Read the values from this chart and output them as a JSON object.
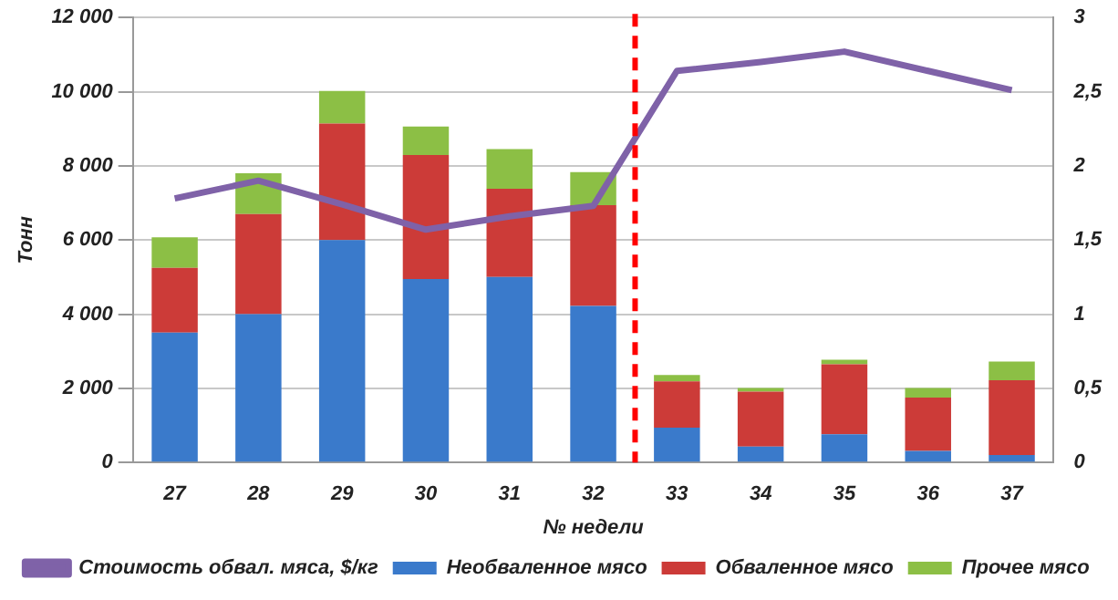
{
  "chart_data": {
    "type": "bar",
    "stacked": true,
    "xlabel": "№ недели",
    "ylabel": "Тонн",
    "x": [
      27,
      28,
      29,
      30,
      31,
      32,
      33,
      34,
      35,
      36,
      37
    ],
    "xlim": [
      26.5,
      37.5
    ],
    "xticks": [
      27,
      28,
      29,
      30,
      31,
      32,
      33,
      34,
      35,
      36,
      37
    ],
    "ylim": [
      0,
      12000
    ],
    "yticks": [
      {
        "value": 0,
        "label": "0"
      },
      {
        "value": 2000,
        "label": "2 000"
      },
      {
        "value": 4000,
        "label": "4 000"
      },
      {
        "value": 6000,
        "label": "6 000"
      },
      {
        "value": 8000,
        "label": "8 000"
      },
      {
        "value": 10000,
        "label": "10 000"
      },
      {
        "value": 12000,
        "label": "12 000"
      }
    ],
    "y2lim": [
      0,
      3
    ],
    "y2ticks": [
      0,
      {
        "value": 0.5,
        "label": "0,5"
      },
      1,
      {
        "value": 1.5,
        "label": "1,5"
      },
      2,
      {
        "value": 2.5,
        "label": "2,5"
      },
      3
    ],
    "grid": "y",
    "legend": "bottom",
    "series": [
      {
        "name": "Необваленное мясо",
        "color": "#3a7acb",
        "values": [
          3500,
          4000,
          6000,
          4950,
          5000,
          4220,
          940,
          430,
          760,
          310,
          200
        ]
      },
      {
        "name": "Обваленное мясо",
        "color": "#cc3b38",
        "values": [
          1750,
          2700,
          3140,
          3340,
          2380,
          2720,
          1250,
          1480,
          1890,
          1440,
          2020
        ]
      },
      {
        "name": "Прочее мясо",
        "color": "#8cbf45",
        "values": [
          820,
          1100,
          880,
          770,
          1070,
          890,
          170,
          100,
          120,
          260,
          500
        ]
      },
      {
        "name": "Стоимость обвал. мяса, $/кг",
        "type": "line",
        "axis": "y2",
        "color": "#7f62a8",
        "marker": "none",
        "values": [
          1.78,
          1.9,
          1.74,
          1.57,
          1.66,
          1.73,
          2.64,
          2.7,
          2.77,
          2.64,
          2.51
        ]
      }
    ],
    "ref_lines": [
      {
        "axis": "x",
        "value": 32.5,
        "color": "#ff0000",
        "line_style": "dashed"
      }
    ]
  }
}
